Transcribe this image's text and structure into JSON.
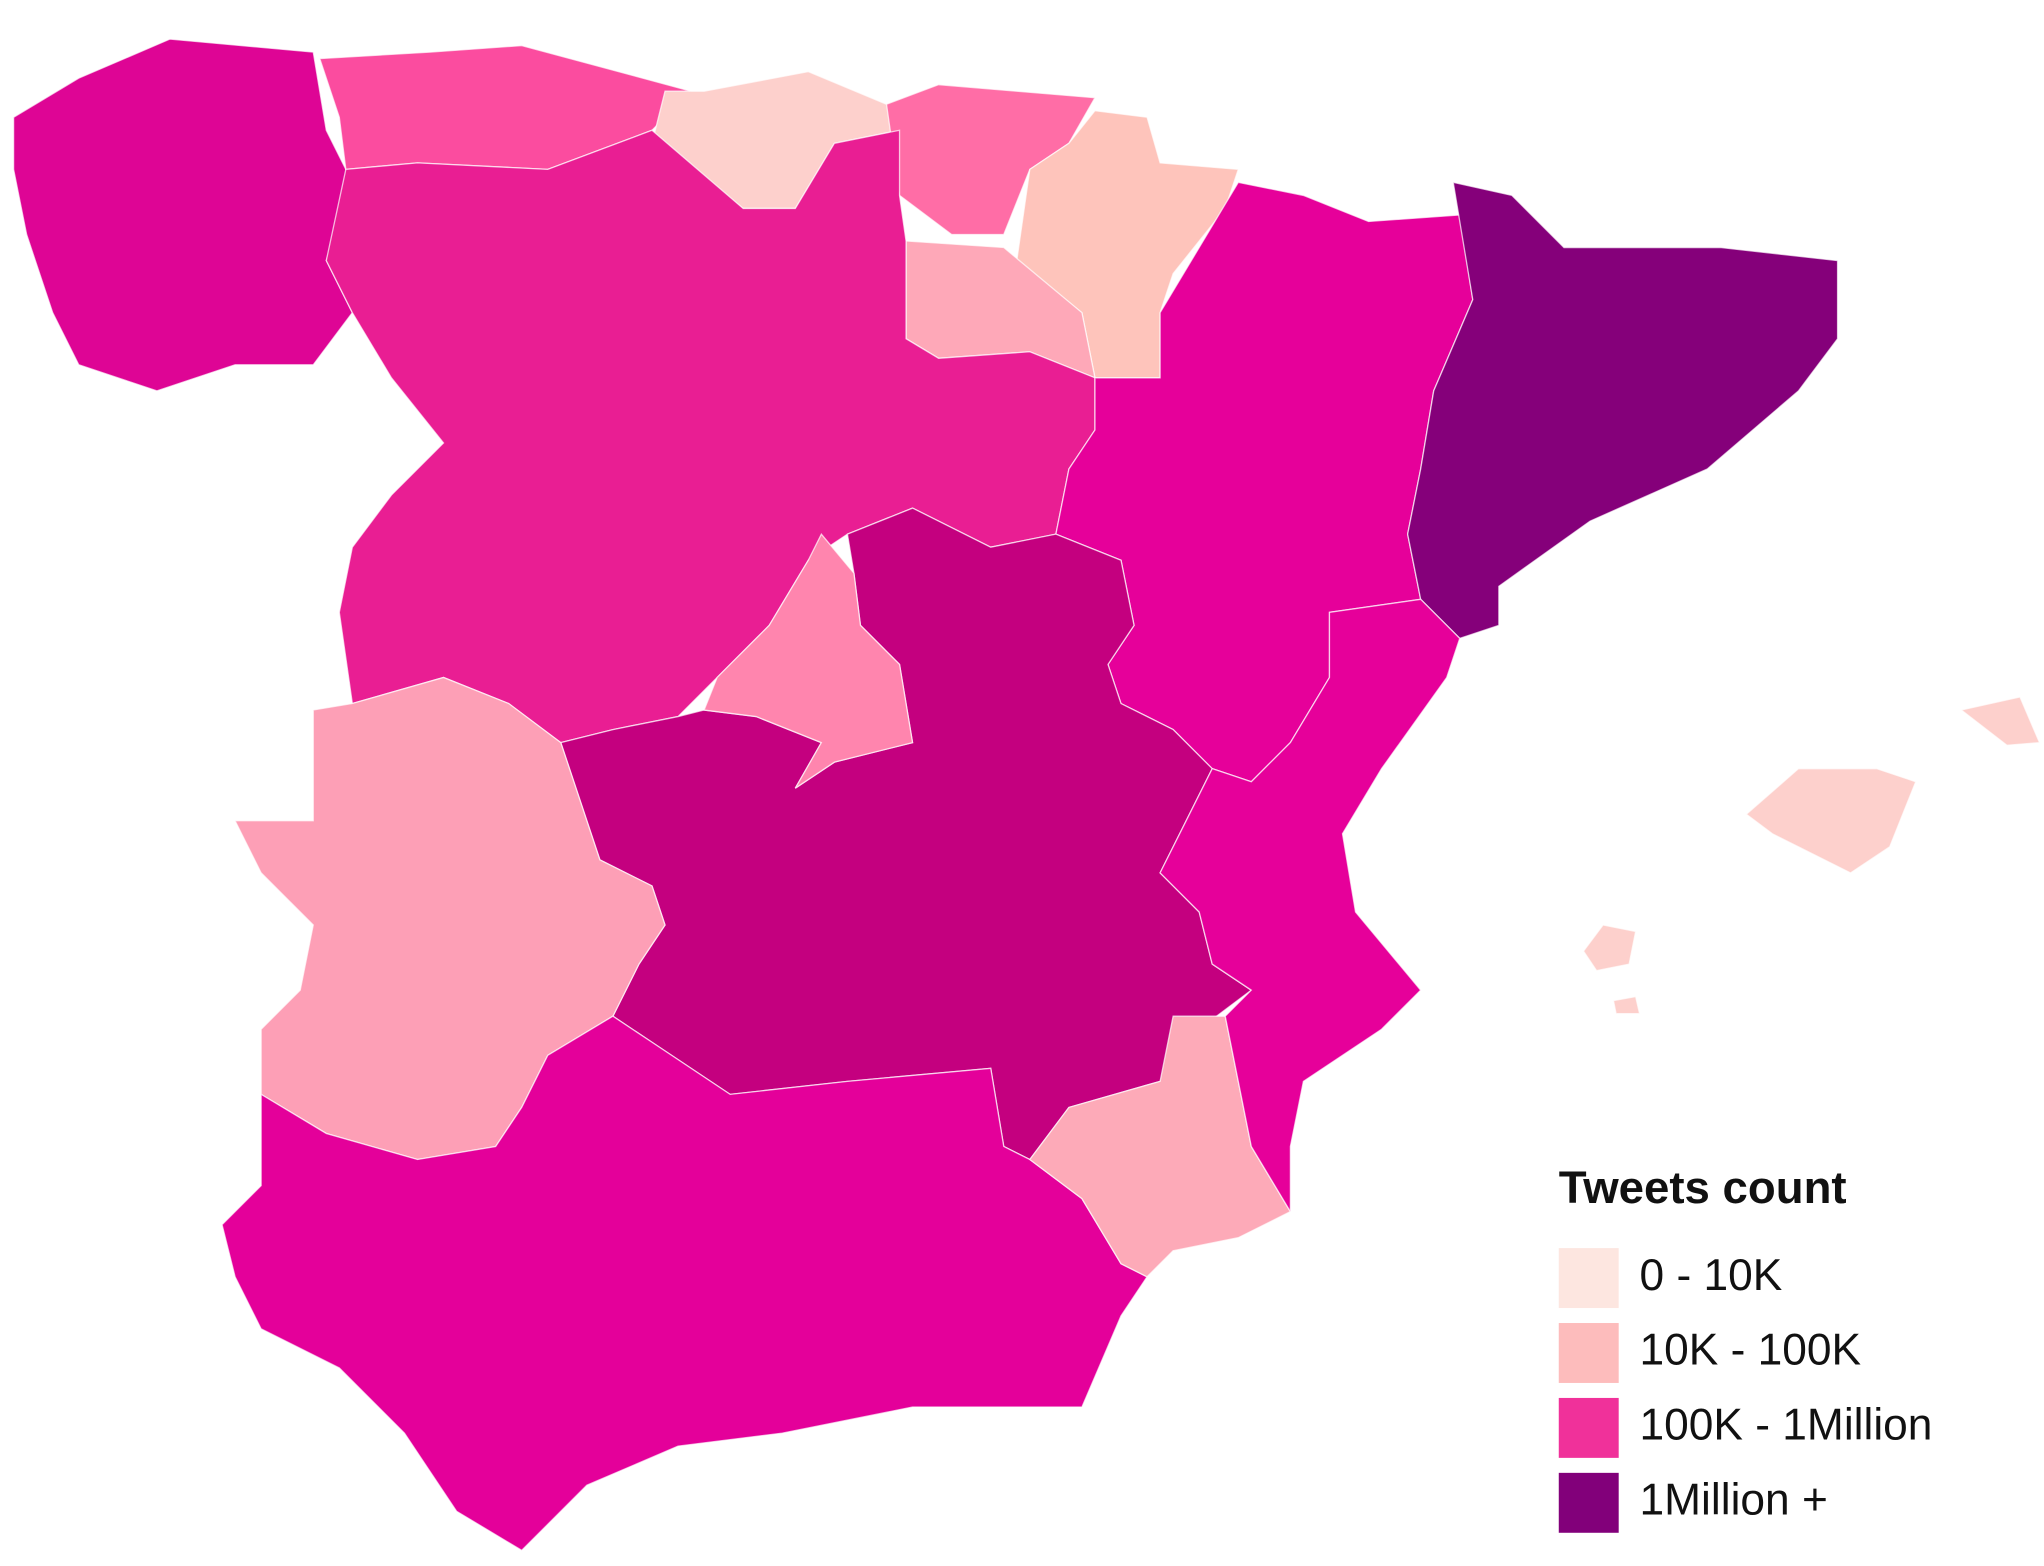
{
  "legend": {
    "title": "Tweets count",
    "items": [
      {
        "label": "0 - 10K",
        "color": "#fde6e0"
      },
      {
        "label": "10K - 100K",
        "color": "#fdbcbc"
      },
      {
        "label": "100K - 1Million",
        "color": "#f0319a"
      },
      {
        "label": "1Million +",
        "color": "#82007a"
      }
    ]
  }
}
